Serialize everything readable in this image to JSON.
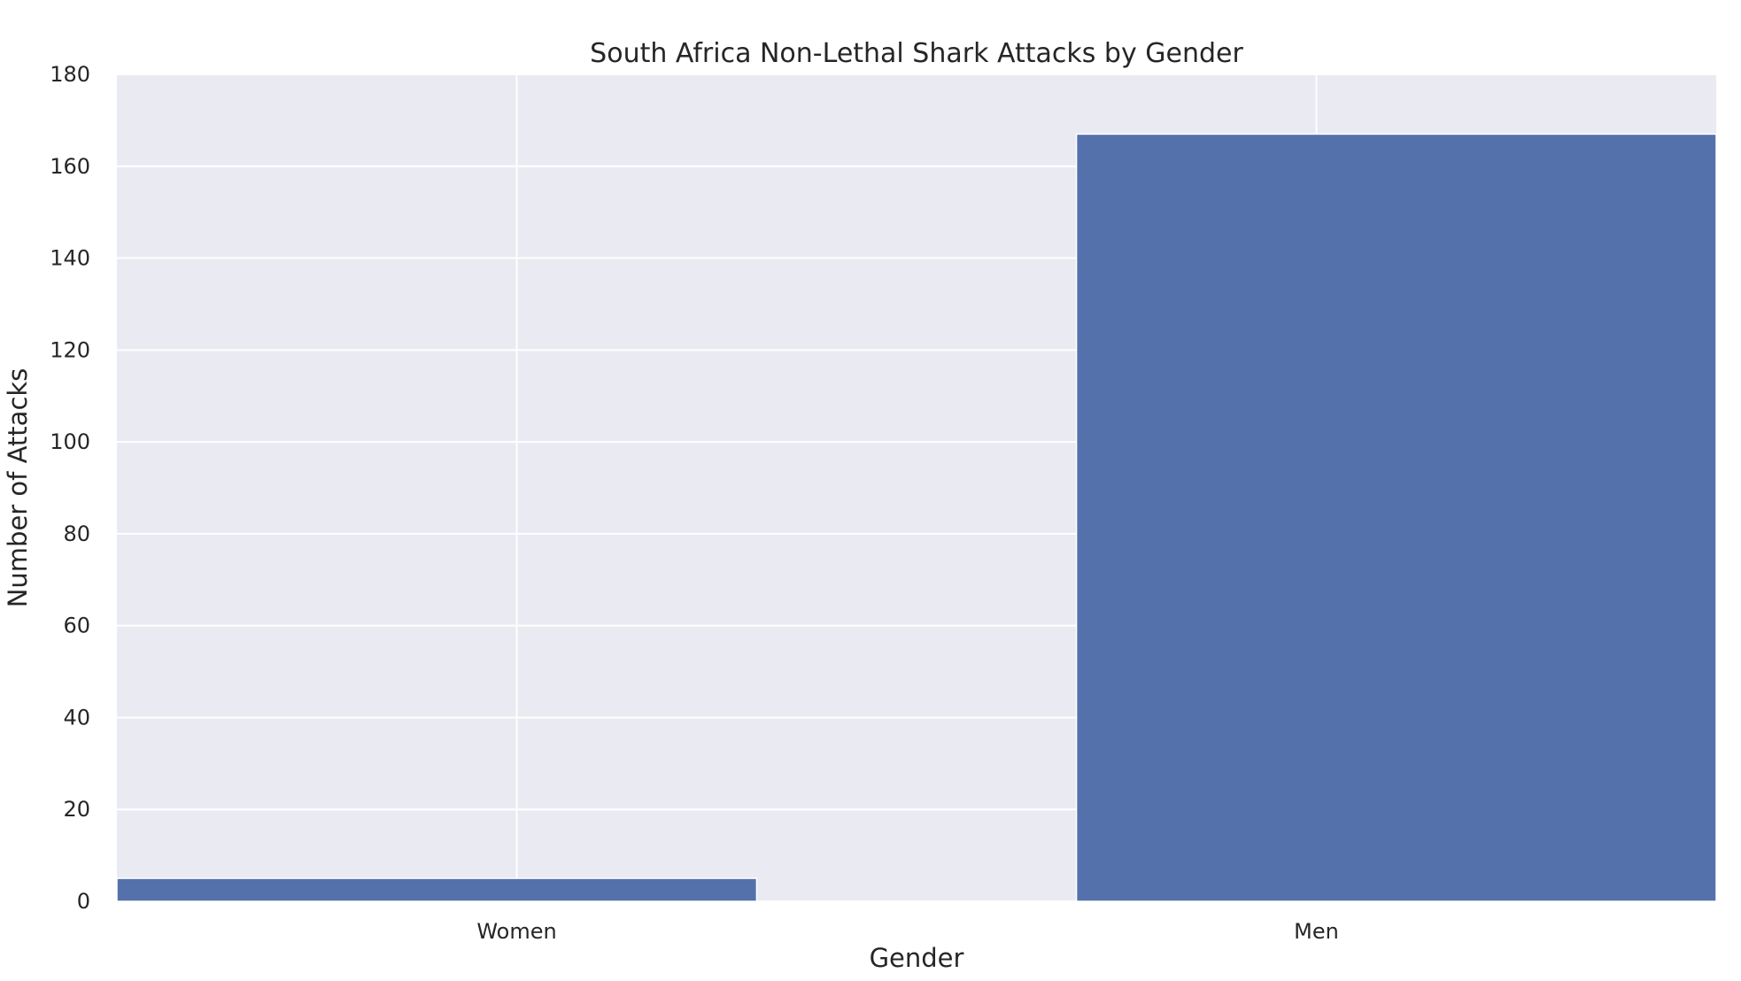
{
  "chart_data": {
    "type": "bar",
    "title": "South Africa Non-Lethal Shark Attacks by Gender",
    "xlabel": "Gender",
    "ylabel": "Number of Attacks",
    "categories": [
      "Women",
      "Men"
    ],
    "values": [
      5,
      167
    ],
    "ylim": [
      0,
      180
    ],
    "yticks": [
      0,
      20,
      40,
      60,
      80,
      100,
      120,
      140,
      160,
      180
    ],
    "grid": true,
    "legend": "none",
    "colors": {
      "bar": "#5471AB",
      "plot_background": "#EAEAF2",
      "grid": "#FFFFFF",
      "text": "#262626"
    }
  }
}
